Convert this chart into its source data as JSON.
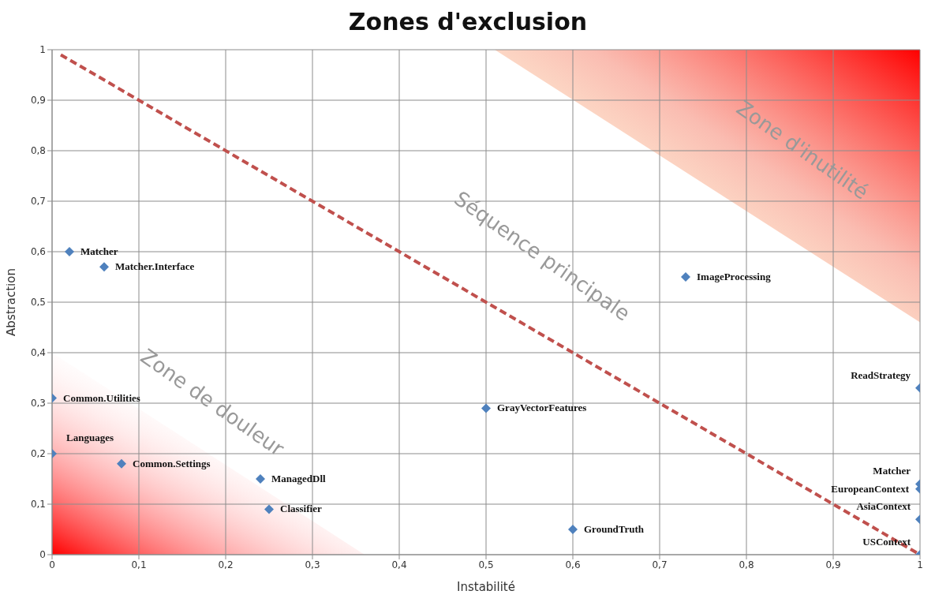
{
  "chart_data": {
    "type": "scatter",
    "title": "Zones d'exclusion",
    "xlabel": "Instabilité",
    "ylabel": "Abstraction",
    "xlim": [
      0,
      1
    ],
    "ylim": [
      0,
      1
    ],
    "xticks": [
      0,
      {
        "value": 0.1,
        "label": "0,1"
      },
      {
        "value": 0.2,
        "label": "0,2"
      },
      {
        "value": 0.3,
        "label": "0,3"
      },
      {
        "value": 0.4,
        "label": "0,4"
      },
      {
        "value": 0.5,
        "label": "0,5"
      },
      {
        "value": 0.6,
        "label": "0,6"
      },
      {
        "value": 0.7,
        "label": "0,7"
      },
      {
        "value": 0.8,
        "label": "0,8"
      },
      {
        "value": 0.9,
        "label": "0,9"
      },
      1
    ],
    "yticks": [
      0,
      {
        "value": 0.1,
        "label": "0,1"
      },
      {
        "value": 0.2,
        "label": "0,2"
      },
      {
        "value": 0.3,
        "label": "0,3"
      },
      {
        "value": 0.4,
        "label": "0,4"
      },
      {
        "value": 0.5,
        "label": "0,5"
      },
      {
        "value": 0.6,
        "label": "0,6"
      },
      {
        "value": 0.7,
        "label": "0,7"
      },
      {
        "value": 0.8,
        "label": "0,8"
      },
      {
        "value": 0.9,
        "label": "0,9"
      },
      1
    ],
    "grid": true,
    "legend": false,
    "marker": "diamond",
    "series": [
      {
        "color": "#4f81bd",
        "x": [
          0.02,
          0.06,
          0,
          0,
          0.08,
          0.24,
          0.25,
          0.5,
          0.6,
          0.73,
          1,
          1,
          1,
          1,
          1
        ],
        "values": [
          0.6,
          0.57,
          0.31,
          0.2,
          0.18,
          0.15,
          0.09,
          0.29,
          0.05,
          0.55,
          0.33,
          0.14,
          0.13,
          0.07,
          0
        ]
      },
      {
        "type": "line",
        "color": "#c0504d",
        "line_style": "dashed",
        "marker": "none",
        "x": [
          0.01,
          1
        ],
        "values": [
          0.99,
          0
        ]
      }
    ],
    "annotations": [
      "Zone d'inutilité",
      "Séquence principale",
      "Zone de douleur",
      {
        "text": "Matcher",
        "x": 0.02,
        "y": 0.6
      },
      {
        "text": "Matcher.Interface",
        "x": 0.06,
        "y": 0.57
      },
      {
        "text": "Common.Utilities",
        "x": 0,
        "y": 0.31
      },
      {
        "text": "Languages",
        "x": 0,
        "y": 0.2
      },
      {
        "text": "Common.Settings",
        "x": 0.08,
        "y": 0.18
      },
      {
        "text": "ManagedDll",
        "x": 0.24,
        "y": 0.15
      },
      {
        "text": "Classifier",
        "x": 0.25,
        "y": 0.09
      },
      {
        "text": "GrayVectorFeatures",
        "x": 0.5,
        "y": 0.29
      },
      {
        "text": "GroundTruth",
        "x": 0.6,
        "y": 0.05
      },
      {
        "text": "ImageProcessing",
        "x": 0.73,
        "y": 0.55
      },
      {
        "text": "ReadStrategy",
        "x": 1,
        "y": 0.33
      },
      {
        "text": "Matcher",
        "x": 1,
        "y": 0.14
      },
      {
        "text": "EuropeanContext",
        "x": 1,
        "y": 0.13
      },
      {
        "text": "AsiaContext",
        "x": 1,
        "y": 0.07
      },
      {
        "text": "USContext",
        "x": 1,
        "y": 0
      }
    ]
  }
}
